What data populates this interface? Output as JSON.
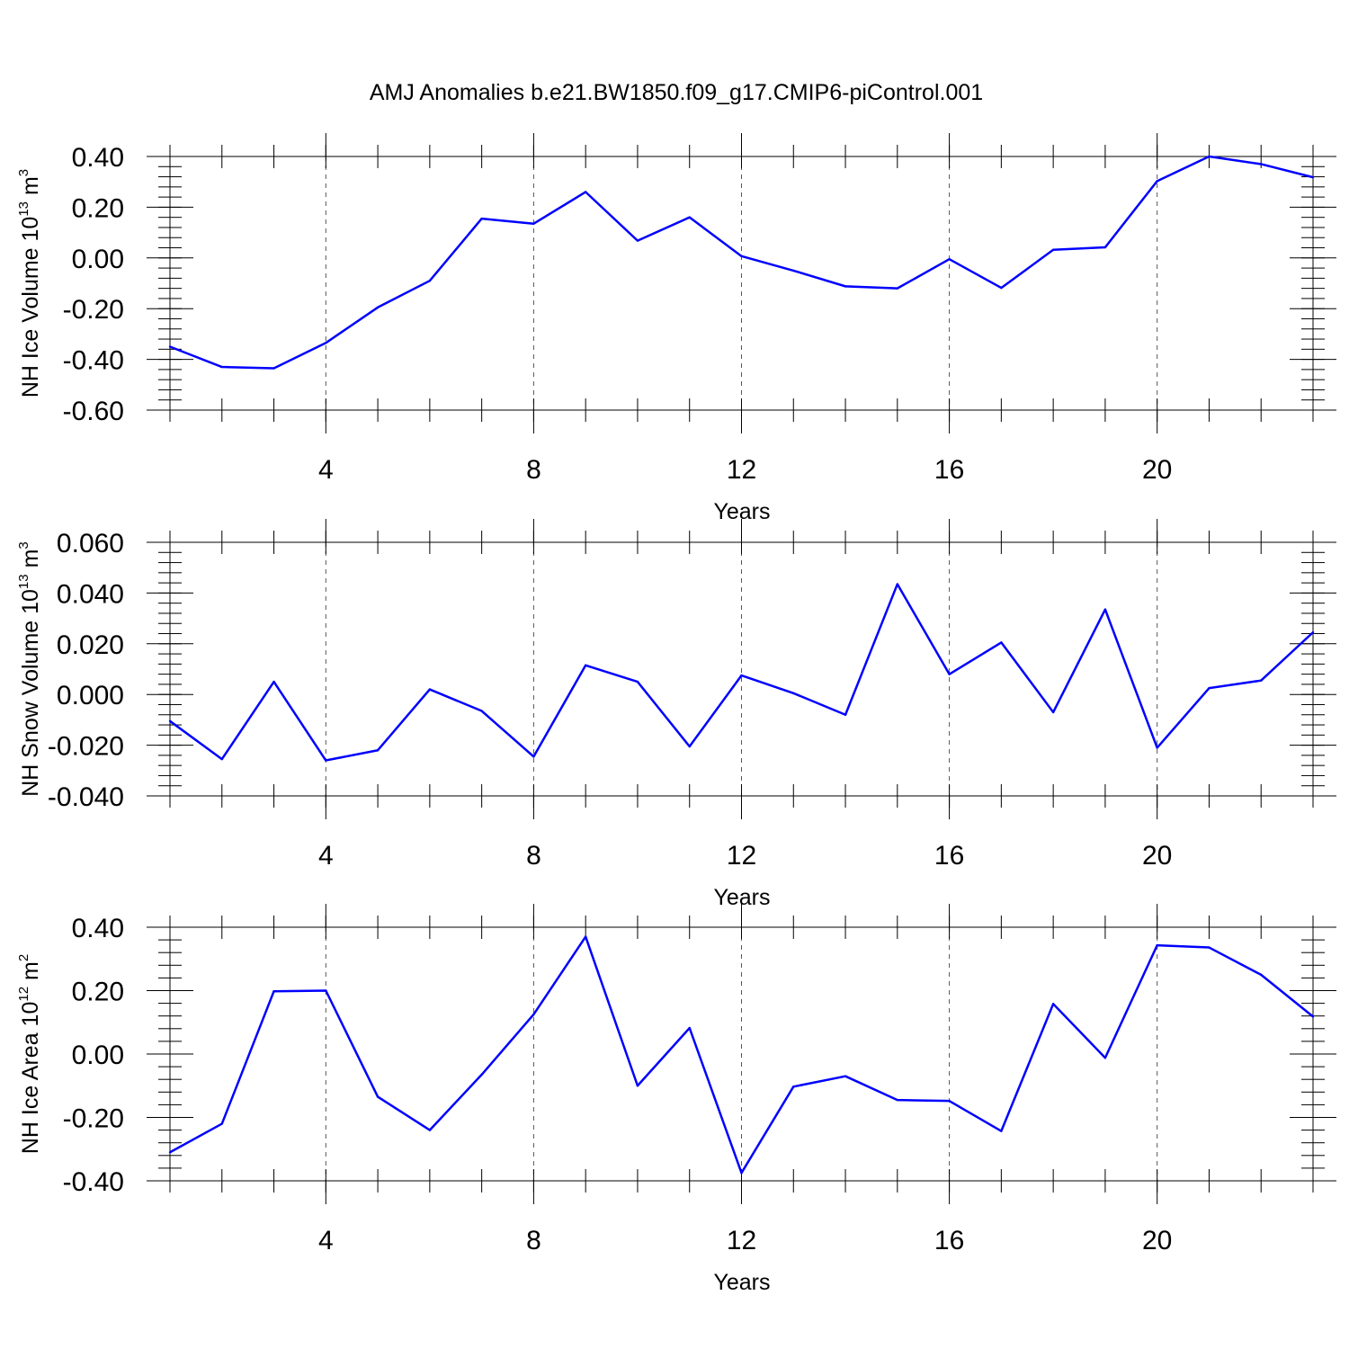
{
  "figure_title": "AMJ Anomalies b.e21.BW1850.f09_g17.CMIP6-piControl.001",
  "line_color": "#0000ff",
  "chart_data": [
    {
      "type": "line",
      "title": "AMJ Anomalies b.e21.BW1850.f09_g17.CMIP6-piControl.001",
      "xlabel": "Years",
      "ylabel": {
        "base": "NH Ice Volume 10",
        "exp": "13",
        "unit": " m",
        "unit_exp": "3"
      },
      "x": [
        1,
        2,
        3,
        4,
        5,
        6,
        7,
        8,
        9,
        10,
        11,
        12,
        13,
        14,
        15,
        16,
        17,
        18,
        19,
        20,
        21,
        22,
        23
      ],
      "series": [
        {
          "name": "NH Ice Volume",
          "values": [
            -0.35,
            -0.43,
            -0.435,
            -0.335,
            -0.195,
            -0.09,
            0.155,
            0.135,
            0.26,
            0.068,
            0.16,
            0.007,
            -0.05,
            -0.112,
            -0.12,
            -0.005,
            -0.118,
            0.032,
            0.042,
            0.303,
            0.4,
            0.37,
            0.318
          ]
        }
      ],
      "xlim": [
        1,
        23
      ],
      "ylim": [
        -0.6,
        0.4
      ],
      "xticks": [
        4,
        8,
        12,
        16,
        20
      ],
      "xtick_labels": [
        "4",
        "8",
        "12",
        "16",
        "20"
      ],
      "yticks": [
        -0.6,
        -0.4,
        -0.2,
        0.0,
        0.2,
        0.4
      ],
      "ytick_labels": [
        "-0.60",
        "-0.40",
        "-0.20",
        "0.00",
        "0.20",
        "0.40"
      ],
      "grid": "vertical-dashed"
    },
    {
      "type": "line",
      "xlabel": "Years",
      "ylabel": {
        "base": "NH Snow Volume 10",
        "exp": "13",
        "unit": " m",
        "unit_exp": "3"
      },
      "x": [
        1,
        2,
        3,
        4,
        5,
        6,
        7,
        8,
        9,
        10,
        11,
        12,
        13,
        14,
        15,
        16,
        17,
        18,
        19,
        20,
        21,
        22,
        23
      ],
      "series": [
        {
          "name": "NH Snow Volume",
          "values": [
            -0.0105,
            -0.0255,
            0.005,
            -0.026,
            -0.022,
            0.002,
            -0.0065,
            -0.0245,
            0.0115,
            0.005,
            -0.0205,
            0.0075,
            0.0005,
            -0.008,
            0.0435,
            0.008,
            0.0205,
            -0.007,
            0.0335,
            -0.021,
            0.0025,
            0.0055,
            0.0245
          ]
        }
      ],
      "xlim": [
        1,
        23
      ],
      "ylim": [
        -0.04,
        0.06
      ],
      "xticks": [
        4,
        8,
        12,
        16,
        20
      ],
      "xtick_labels": [
        "4",
        "8",
        "12",
        "16",
        "20"
      ],
      "yticks": [
        -0.04,
        -0.02,
        0.0,
        0.02,
        0.04,
        0.06
      ],
      "ytick_labels": [
        "-0.040",
        "-0.020",
        "0.000",
        "0.020",
        "0.040",
        "0.060"
      ],
      "grid": "vertical-dashed"
    },
    {
      "type": "line",
      "xlabel": "Years",
      "ylabel": {
        "base": "NH Ice Area 10",
        "exp": "12",
        "unit": " m",
        "unit_exp": "2"
      },
      "x": [
        1,
        2,
        3,
        4,
        5,
        6,
        7,
        8,
        9,
        10,
        11,
        12,
        13,
        14,
        15,
        16,
        17,
        18,
        19,
        20,
        21,
        22,
        23
      ],
      "series": [
        {
          "name": "NH Ice Area",
          "values": [
            -0.31,
            -0.22,
            0.198,
            0.2,
            -0.135,
            -0.24,
            -0.065,
            0.125,
            0.37,
            -0.1,
            0.082,
            -0.375,
            -0.103,
            -0.07,
            -0.145,
            -0.148,
            -0.243,
            0.158,
            -0.012,
            0.343,
            0.336,
            0.25,
            0.118
          ]
        }
      ],
      "xlim": [
        1,
        23
      ],
      "ylim": [
        -0.4,
        0.4
      ],
      "xticks": [
        4,
        8,
        12,
        16,
        20
      ],
      "xtick_labels": [
        "4",
        "8",
        "12",
        "16",
        "20"
      ],
      "yticks": [
        -0.4,
        -0.2,
        0.0,
        0.2,
        0.4
      ],
      "ytick_labels": [
        "-0.40",
        "-0.20",
        "0.00",
        "0.20",
        "0.40"
      ],
      "grid": "vertical-dashed"
    }
  ]
}
